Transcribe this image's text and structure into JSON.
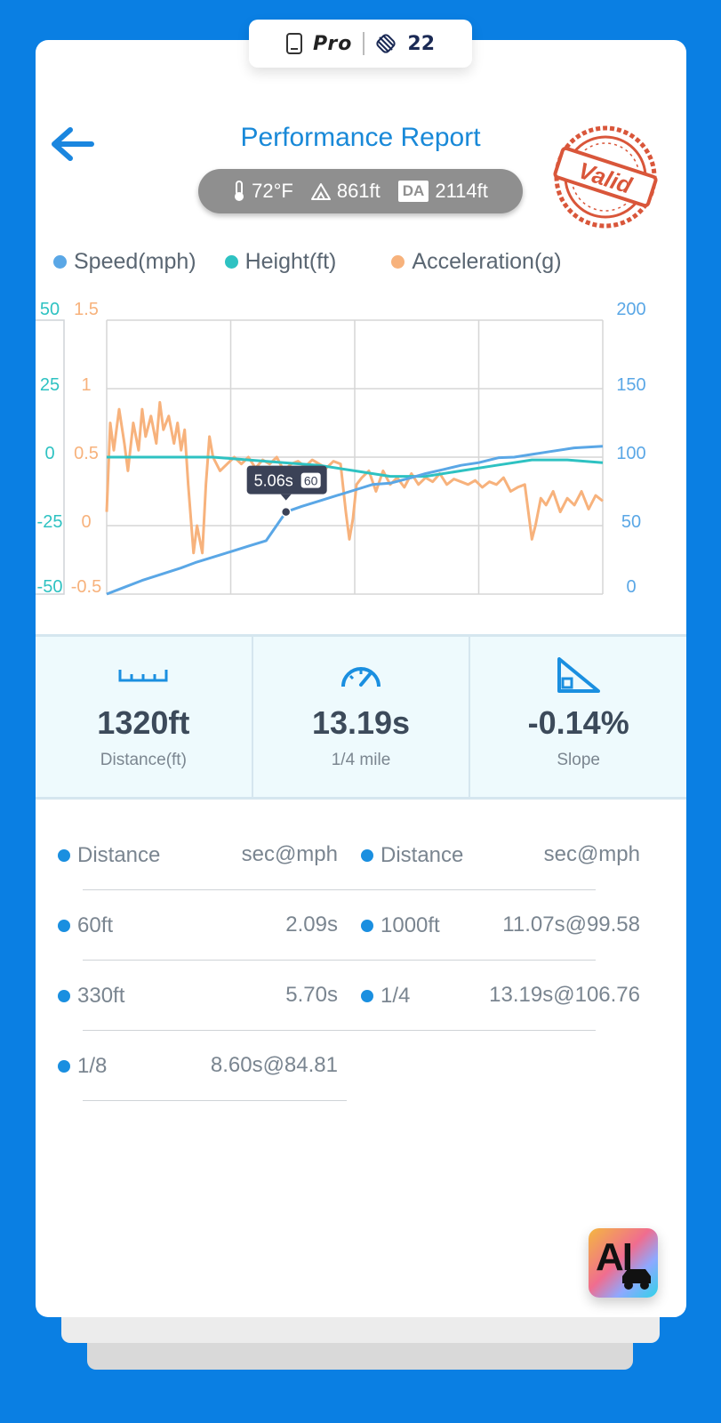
{
  "top_badge": {
    "label": "Pro",
    "count": "22"
  },
  "header": {
    "title": "Performance Report",
    "stamp_text": "Valid"
  },
  "conditions": {
    "temperature": "72°F",
    "altitude": "861ft",
    "da_label": "DA",
    "density_altitude": "2114ft"
  },
  "legend": [
    {
      "label": "Speed(mph)",
      "color": "#5aa7e6"
    },
    {
      "label": "Height(ft)",
      "color": "#2ec2c2"
    },
    {
      "label": "Acceleration(g)",
      "color": "#f7b27c"
    }
  ],
  "chart_data": {
    "type": "line",
    "x_range": [
      0,
      14
    ],
    "axes": {
      "height_ticks": [
        "50",
        "25",
        "0",
        "-25",
        "-50"
      ],
      "accel_ticks": [
        "1.5",
        "1",
        "0.5",
        "0",
        "-0.5"
      ],
      "speed_ticks": [
        "200",
        "150",
        "100",
        "50",
        "0"
      ],
      "height_range": [
        -50,
        50
      ],
      "accel_range": [
        -0.5,
        1.5
      ],
      "speed_range": [
        0,
        200
      ]
    },
    "series": [
      {
        "name": "Speed(mph)",
        "axis": "speed",
        "color": "#5aa7e6",
        "x": [
          0,
          0.5,
          1,
          1.6,
          2.09,
          2.5,
          3,
          3.5,
          4,
          4.5,
          5.06,
          5.5,
          6,
          6.5,
          7,
          7.5,
          8,
          8.6,
          9,
          9.5,
          10,
          10.5,
          11.07,
          11.5,
          12,
          12.5,
          13.19,
          14
        ],
        "y": [
          0,
          5,
          10,
          15,
          19,
          23,
          27,
          31,
          35,
          39,
          60,
          64,
          68,
          72,
          76,
          80,
          81,
          85,
          88,
          91,
          94,
          96,
          99.58,
          100,
          102,
          104,
          106.76,
          108
        ]
      },
      {
        "name": "Height(ft)",
        "axis": "height",
        "color": "#2ec2c2",
        "x": [
          0,
          1,
          2,
          3,
          4,
          5,
          6,
          7,
          8,
          9,
          10,
          11,
          12,
          13,
          14
        ],
        "y": [
          0,
          0,
          0,
          0,
          -1,
          -2,
          -3,
          -5,
          -7,
          -7,
          -5,
          -3,
          -1,
          -1,
          -2
        ]
      },
      {
        "name": "Acceleration(g)",
        "axis": "accel",
        "color": "#f7b27c",
        "x": [
          0,
          0.1,
          0.2,
          0.35,
          0.5,
          0.6,
          0.75,
          0.9,
          1.0,
          1.1,
          1.25,
          1.4,
          1.5,
          1.6,
          1.75,
          1.9,
          2.0,
          2.1,
          2.2,
          2.3,
          2.45,
          2.55,
          2.7,
          2.8,
          2.9,
          3.0,
          3.2,
          3.4,
          3.6,
          3.8,
          4.0,
          4.2,
          4.4,
          4.6,
          4.8,
          5.0,
          5.2,
          5.4,
          5.6,
          5.8,
          6.0,
          6.2,
          6.4,
          6.6,
          6.75,
          6.85,
          6.95,
          7.05,
          7.2,
          7.4,
          7.6,
          7.8,
          8.0,
          8.2,
          8.4,
          8.6,
          8.8,
          9.0,
          9.2,
          9.4,
          9.6,
          9.8,
          10.0,
          10.2,
          10.4,
          10.6,
          10.8,
          11.0,
          11.2,
          11.4,
          11.6,
          11.8,
          11.9,
          12.0,
          12.1,
          12.25,
          12.4,
          12.6,
          12.8,
          13.0,
          13.2,
          13.4,
          13.6,
          13.8,
          14.0
        ],
        "y": [
          0.1,
          0.75,
          0.55,
          0.85,
          0.6,
          0.4,
          0.75,
          0.55,
          0.85,
          0.65,
          0.8,
          0.6,
          0.9,
          0.7,
          0.8,
          0.6,
          0.75,
          0.55,
          0.7,
          0.3,
          -0.2,
          0.0,
          -0.2,
          0.3,
          0.65,
          0.5,
          0.4,
          0.45,
          0.5,
          0.45,
          0.5,
          0.42,
          0.48,
          0.45,
          0.5,
          0.4,
          0.45,
          0.47,
          0.43,
          0.48,
          0.45,
          0.42,
          0.47,
          0.45,
          0.1,
          -0.1,
          0.05,
          0.3,
          0.35,
          0.4,
          0.25,
          0.4,
          0.3,
          0.35,
          0.28,
          0.38,
          0.3,
          0.35,
          0.32,
          0.38,
          0.3,
          0.34,
          0.32,
          0.3,
          0.33,
          0.28,
          0.32,
          0.3,
          0.35,
          0.25,
          0.28,
          0.3,
          0.1,
          -0.1,
          0.0,
          0.2,
          0.15,
          0.25,
          0.1,
          0.2,
          0.15,
          0.25,
          0.12,
          0.22,
          0.18
        ]
      }
    ],
    "tooltip": {
      "time": "5.06s",
      "speed": "60",
      "x": 5.06,
      "y": 60
    }
  },
  "stats": [
    {
      "value": "1320ft",
      "label": "Distance(ft)",
      "icon": "ruler-icon"
    },
    {
      "value": "13.19s",
      "label": "1/4 mile",
      "icon": "speedometer-icon"
    },
    {
      "value": "-0.14%",
      "label": "Slope",
      "icon": "slope-icon"
    }
  ],
  "table": {
    "headers": {
      "distance": "Distance",
      "time": "sec@mph"
    },
    "left": [
      {
        "distance": "60ft",
        "time": "2.09s"
      },
      {
        "distance": "330ft",
        "time": "5.70s"
      },
      {
        "distance": "1/8",
        "time": "8.60s@84.81"
      }
    ],
    "right": [
      {
        "distance": "1000ft",
        "time": "11.07s@99.58"
      },
      {
        "distance": "1/4",
        "time": "13.19s@106.76"
      }
    ]
  },
  "ai_button": {
    "label": "AI"
  }
}
